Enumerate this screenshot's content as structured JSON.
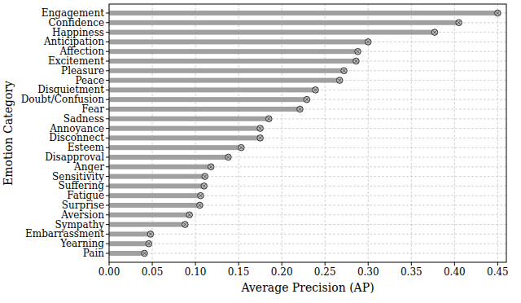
{
  "chart_data": {
    "type": "bar",
    "orientation": "horizontal",
    "x_label": "Average Precision (AP)",
    "y_label": "Emotion Category",
    "categories": [
      "Engagement",
      "Confidence",
      "Happiness",
      "Anticipation",
      "Affection",
      "Excitement",
      "Pleasure",
      "Peace",
      "Disquietment",
      "Doubt/Confusion",
      "Fear",
      "Sadness",
      "Annoyance",
      "Disconnect",
      "Esteem",
      "Disapproval",
      "Anger",
      "Sensitivity",
      "Suffering",
      "Fatigue",
      "Surprise",
      "Aversion",
      "Sympathy",
      "Embarrassment",
      "Yearning",
      "Pain"
    ],
    "values": [
      0.45,
      0.405,
      0.377,
      0.3,
      0.288,
      0.286,
      0.272,
      0.267,
      0.239,
      0.229,
      0.221,
      0.185,
      0.175,
      0.175,
      0.153,
      0.138,
      0.118,
      0.111,
      0.11,
      0.106,
      0.105,
      0.093,
      0.088,
      0.048,
      0.046,
      0.041
    ],
    "color": "#a0a0a0",
    "marker": "circle",
    "xlim": [
      0,
      0.46
    ],
    "xticks": [
      {
        "value": 0,
        "label": "0.00"
      },
      0.05,
      {
        "value": 0.1,
        "label": "0.10"
      },
      0.15,
      {
        "value": 0.2,
        "label": "0.20"
      },
      0.25,
      {
        "value": 0.3,
        "label": "0.30"
      },
      0.35,
      {
        "value": 0.4,
        "label": "0.40"
      },
      0.45
    ],
    "grid": true
  }
}
